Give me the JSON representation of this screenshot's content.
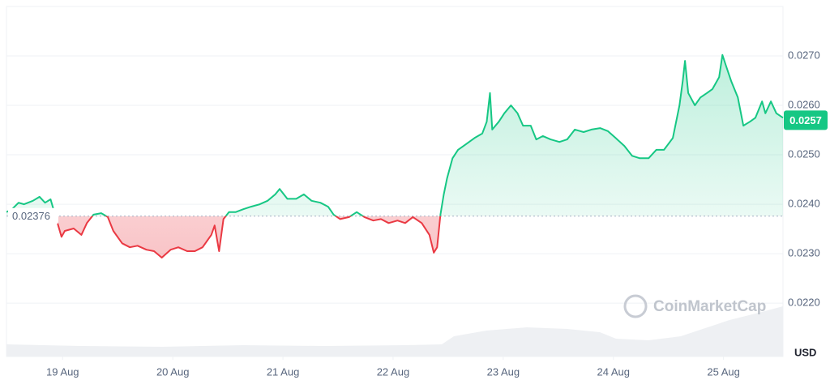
{
  "chart_data": {
    "type": "line",
    "x": [
      -0.51,
      -0.46,
      -0.4,
      -0.35,
      -0.27,
      -0.21,
      -0.16,
      -0.11,
      -0.01,
      0.02,
      0.1,
      0.17,
      0.22,
      0.28,
      0.35,
      0.41,
      0.46,
      0.54,
      0.61,
      0.68,
      0.76,
      0.83,
      0.9,
      0.98,
      1.05,
      1.13,
      1.2,
      1.27,
      1.35,
      1.38,
      1.42,
      1.46,
      1.51,
      1.57,
      1.64,
      1.71,
      1.79,
      1.86,
      1.93,
      1.97,
      2.04,
      2.12,
      2.19,
      2.26,
      2.34,
      2.41,
      2.46,
      2.52,
      2.6,
      2.67,
      2.74,
      2.82,
      2.89,
      2.96,
      3.04,
      3.11,
      3.18,
      3.26,
      3.33,
      3.37,
      3.4,
      3.43,
      3.46,
      3.49,
      3.54,
      3.59,
      3.66,
      3.74,
      3.81,
      3.85,
      3.88,
      3.9,
      3.96,
      4.01,
      4.07,
      4.13,
      4.18,
      4.25,
      4.3,
      4.36,
      4.43,
      4.51,
      4.58,
      4.65,
      4.73,
      4.8,
      4.88,
      4.95,
      5.02,
      5.1,
      5.17,
      5.24,
      5.32,
      5.39,
      5.46,
      5.54,
      5.6,
      5.63,
      5.65,
      5.68,
      5.74,
      5.79,
      5.85,
      5.9,
      5.96,
      5.99,
      6.02,
      6.07,
      6.13,
      6.18,
      6.24,
      6.29,
      6.35,
      6.38,
      6.43,
      6.48,
      6.54
    ],
    "values": [
      0.02384,
      0.0239,
      0.02403,
      0.024,
      0.02407,
      0.02415,
      0.02403,
      0.0241,
      0.02334,
      0.02346,
      0.02351,
      0.02338,
      0.02362,
      0.02379,
      0.02382,
      0.02374,
      0.02346,
      0.02321,
      0.02313,
      0.02316,
      0.02308,
      0.02305,
      0.02292,
      0.02308,
      0.02313,
      0.02305,
      0.02305,
      0.02313,
      0.02338,
      0.02357,
      0.02305,
      0.0237,
      0.02384,
      0.02384,
      0.0239,
      0.02395,
      0.024,
      0.02407,
      0.0242,
      0.02431,
      0.02411,
      0.02411,
      0.0242,
      0.02407,
      0.02403,
      0.02395,
      0.02379,
      0.0237,
      0.02374,
      0.02384,
      0.02374,
      0.02367,
      0.0237,
      0.02362,
      0.02367,
      0.02362,
      0.02374,
      0.02362,
      0.02338,
      0.02302,
      0.02313,
      0.02379,
      0.0242,
      0.02452,
      0.02493,
      0.0251,
      0.02521,
      0.02534,
      0.02543,
      0.02567,
      0.02625,
      0.02551,
      0.02567,
      0.02584,
      0.026,
      0.02584,
      0.02559,
      0.02559,
      0.02531,
      0.02538,
      0.02531,
      0.02526,
      0.02531,
      0.02551,
      0.02546,
      0.02551,
      0.02554,
      0.02548,
      0.02534,
      0.02518,
      0.02498,
      0.02493,
      0.02493,
      0.0251,
      0.0251,
      0.02534,
      0.026,
      0.02649,
      0.0269,
      0.02625,
      0.026,
      0.02616,
      0.02625,
      0.02633,
      0.02657,
      0.02702,
      0.02682,
      0.02649,
      0.02616,
      0.02559,
      0.02567,
      0.02575,
      0.02608,
      0.02584,
      0.02608,
      0.02584,
      0.02575
    ],
    "baseline": 0.02376,
    "last_price": 0.0257,
    "up_color": "#16c784",
    "down_color": "#ea3943",
    "xlim": [
      -0.51,
      6.54
    ],
    "xticks": [
      {
        "value": 0,
        "label": "19 Aug"
      },
      {
        "value": 1,
        "label": "20 Aug"
      },
      {
        "value": 2,
        "label": "21 Aug"
      },
      {
        "value": 3,
        "label": "22 Aug"
      },
      {
        "value": 4,
        "label": "23 Aug"
      },
      {
        "value": 5,
        "label": "24 Aug"
      },
      {
        "value": 6,
        "label": "25 Aug"
      }
    ],
    "ylim": [
      0.02092,
      0.028
    ],
    "yticks": [
      {
        "value": 0.022,
        "label": "0.0220"
      },
      {
        "value": 0.023,
        "label": "0.0230"
      },
      {
        "value": 0.024,
        "label": "0.0240"
      },
      {
        "value": 0.025,
        "label": "0.0250"
      },
      {
        "value": 0.026,
        "label": "0.0260"
      },
      {
        "value": 0.027,
        "label": "0.0270"
      }
    ],
    "grid": true,
    "unit_label": "USD",
    "watermark": "CoinMarketCap"
  }
}
